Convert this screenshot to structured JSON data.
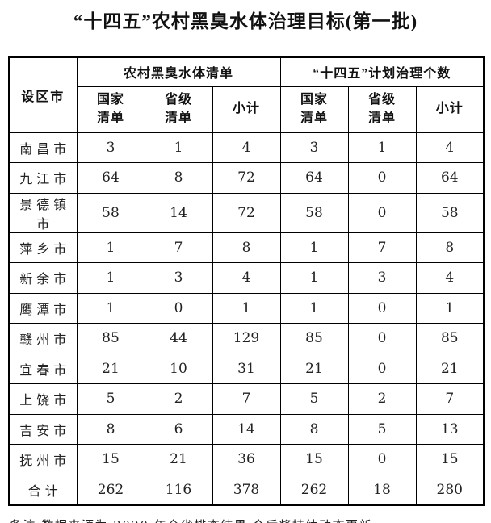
{
  "title": "“十四五”农村黑臭水体治理目标(第一批)",
  "table": {
    "corner_header": "设区市",
    "group_headers": [
      "农村黑臭水体清单",
      "“十四五”计划治理个数"
    ],
    "sub_headers": [
      "国家清单",
      "省级清单",
      "小计",
      "国家清单",
      "省级清单",
      "小计"
    ],
    "rows": [
      {
        "city": "南昌市",
        "values": [
          "3",
          "1",
          "4",
          "3",
          "1",
          "4"
        ]
      },
      {
        "city": "九江市",
        "values": [
          "64",
          "8",
          "72",
          "64",
          "0",
          "64"
        ]
      },
      {
        "city": "景德镇市",
        "values": [
          "58",
          "14",
          "72",
          "58",
          "0",
          "58"
        ]
      },
      {
        "city": "萍乡市",
        "values": [
          "1",
          "7",
          "8",
          "1",
          "7",
          "8"
        ]
      },
      {
        "city": "新余市",
        "values": [
          "1",
          "3",
          "4",
          "1",
          "3",
          "4"
        ]
      },
      {
        "city": "鹰潭市",
        "values": [
          "1",
          "0",
          "1",
          "1",
          "0",
          "1"
        ]
      },
      {
        "city": "赣州市",
        "values": [
          "85",
          "44",
          "129",
          "85",
          "0",
          "85"
        ]
      },
      {
        "city": "宜春市",
        "values": [
          "21",
          "10",
          "31",
          "21",
          "0",
          "21"
        ]
      },
      {
        "city": "上饶市",
        "values": [
          "5",
          "2",
          "7",
          "5",
          "2",
          "7"
        ]
      },
      {
        "city": "吉安市",
        "values": [
          "8",
          "6",
          "14",
          "8",
          "5",
          "13"
        ]
      },
      {
        "city": "抚州市",
        "values": [
          "15",
          "21",
          "36",
          "15",
          "0",
          "15"
        ]
      },
      {
        "city": "合计",
        "values": [
          "262",
          "116",
          "378",
          "262",
          "18",
          "280"
        ]
      }
    ]
  },
  "note": "备注:数据来源为 2020 年全省排查结果,今后将持续动态更新。",
  "colors": {
    "background": "#ffffff",
    "text": "#111111",
    "border": "#000000"
  }
}
